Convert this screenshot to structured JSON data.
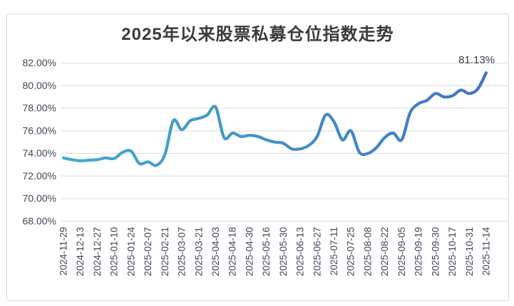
{
  "chart_data": {
    "type": "line",
    "title": "2025年以来股票私募仓位指数走势",
    "x_tick_labels": [
      "2024-11-29",
      "2024-12-13",
      "2024-12-27",
      "2025-01-10",
      "2025-01-24",
      "2025-02-07",
      "2025-02-21",
      "2025-03-07",
      "2025-03-21",
      "2025-04-03",
      "2025-04-18",
      "2025-04-30",
      "2025-05-16",
      "2025-05-30",
      "2025-06-13",
      "2025-06-27",
      "2025-07-11",
      "2025-07-25",
      "2025-08-08",
      "2025-08-22",
      "2025-09-05",
      "2025-09-19",
      "2025-09-30",
      "2025-10-17",
      "2025-10-31",
      "2025-11-14"
    ],
    "points_between_ticks": 1,
    "values": [
      73.6,
      73.45,
      73.35,
      73.4,
      73.45,
      73.6,
      73.55,
      74.1,
      74.2,
      73.1,
      73.25,
      72.95,
      73.9,
      76.9,
      76.1,
      76.9,
      77.1,
      77.4,
      78.1,
      75.4,
      75.8,
      75.5,
      75.6,
      75.5,
      75.2,
      75.0,
      74.9,
      74.4,
      74.4,
      74.7,
      75.5,
      77.4,
      76.8,
      75.2,
      76.0,
      74.1,
      74.0,
      74.5,
      75.4,
      75.8,
      75.2,
      77.6,
      78.4,
      78.7,
      79.3,
      79.0,
      79.1,
      79.6,
      79.3,
      79.7,
      81.13
    ],
    "ylim": [
      68,
      82
    ],
    "y_tick_step": 2,
    "y_ticks": [
      "82.00%",
      "80.00%",
      "78.00%",
      "76.00%",
      "74.00%",
      "72.00%",
      "70.00%",
      "68.00%"
    ],
    "grid": "horizontal",
    "legend": "none",
    "last_value_label": "81.13%",
    "colors": {
      "line_gradient": [
        "#46abc8",
        "#4292c7",
        "#4472c4"
      ],
      "gridline": "#d9d9d9",
      "axis_label": "#3e4757",
      "title": "#3b3b3b",
      "annotation": "#333d4d",
      "frame_border": "#d8d8d8"
    }
  }
}
